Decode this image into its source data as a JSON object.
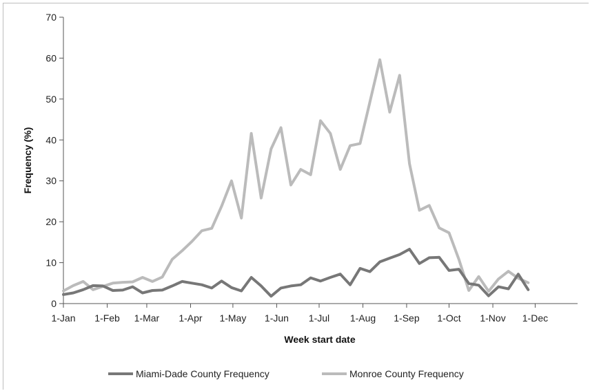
{
  "chart_data": {
    "type": "line",
    "title": "",
    "xlabel": "Week start date",
    "ylabel": "Frequency (%)",
    "ylim": [
      0,
      70
    ],
    "yticks": [
      0,
      10,
      20,
      30,
      40,
      50,
      60,
      70
    ],
    "xlim": [
      1,
      53
    ],
    "xtick_weeks": [
      1,
      5.43,
      9.43,
      13.86,
      18.14,
      22.57,
      26.86,
      31.29,
      35.71,
      40,
      44.43,
      48.71
    ],
    "xtick_labels": [
      "1-Jan",
      "1-Feb",
      "1-Mar",
      "1-Apr",
      "1-May",
      "1-Jun",
      "1-Jul",
      "1-Aug",
      "1-Sep",
      "1-Oct",
      "1-Nov",
      "1-Dec"
    ],
    "grid": false,
    "legend_position": "bottom",
    "series": [
      {
        "name": "Miami-Dade County Frequency",
        "color": "#777777",
        "values": [
          2.2,
          2.6,
          3.4,
          4.4,
          4.3,
          3.2,
          3.3,
          4.1,
          2.6,
          3.2,
          3.3,
          4.3,
          5.4,
          5.0,
          4.6,
          3.8,
          5.5,
          3.9,
          3.1,
          6.4,
          4.3,
          1.8,
          3.8,
          4.3,
          4.6,
          6.3,
          5.5,
          6.4,
          7.2,
          4.6,
          8.6,
          7.8,
          10.2,
          11.1,
          12.0,
          13.3,
          9.8,
          11.2,
          11.3,
          8.1,
          8.4,
          4.9,
          4.5,
          1.9,
          4.1,
          3.6,
          7.2,
          3.4
        ]
      },
      {
        "name": "Monroe County Frequency",
        "color": "#bbbbbb",
        "values": [
          3.1,
          4.4,
          5.4,
          3.4,
          4.2,
          5.0,
          5.2,
          5.3,
          6.4,
          5.4,
          6.5,
          10.8,
          12.9,
          15.2,
          17.8,
          18.4,
          23.8,
          30.0,
          20.9,
          41.6,
          25.8,
          37.8,
          43.0,
          29.0,
          32.8,
          31.5,
          44.7,
          41.6,
          32.8,
          38.6,
          39.1,
          49.3,
          59.6,
          46.8,
          55.8,
          34.2,
          22.8,
          24.0,
          18.5,
          17.3,
          10.8,
          3.2,
          6.6,
          3.0,
          6.0,
          7.9,
          6.2,
          5.1
        ]
      }
    ]
  }
}
